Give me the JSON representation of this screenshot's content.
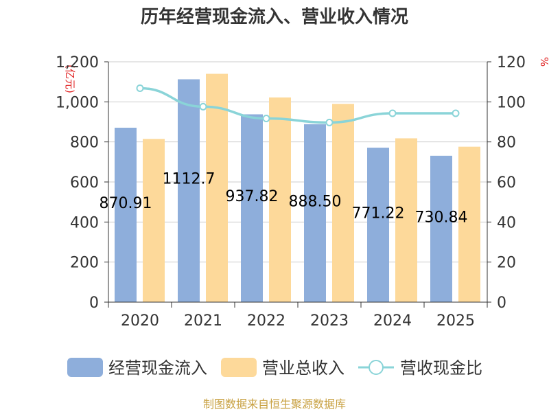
{
  "chart_data": {
    "type": "bar",
    "title": "历年经营现金流入、营业收入情况",
    "categories": [
      "2020",
      "2021",
      "2022",
      "2023",
      "2024",
      "2025"
    ],
    "y_left_unit": "(亿元)",
    "y_right_unit": "%",
    "y_left_ticks": [
      "0",
      "200",
      "400",
      "600",
      "800",
      "1,000",
      "1,200"
    ],
    "y_right_ticks": [
      "0",
      "20",
      "40",
      "60",
      "80",
      "100",
      "120"
    ],
    "ylim_left": [
      0,
      1200
    ],
    "ylim_right": [
      0,
      120
    ],
    "series": [
      {
        "name": "经营现金流入",
        "type": "bar",
        "axis": "left",
        "values": [
          870.91,
          1112.7,
          937.82,
          888.5,
          771.22,
          730.84
        ],
        "labels": [
          "870.91",
          "1112.7",
          "937.82",
          "888.50",
          "771.22",
          "730.84"
        ],
        "color": "#8eaedb"
      },
      {
        "name": "营业总收入",
        "type": "bar",
        "axis": "left",
        "values": [
          815,
          1140,
          1022,
          990,
          818,
          776
        ],
        "color": "#fdd99a"
      },
      {
        "name": "营收现金比",
        "type": "line",
        "axis": "right",
        "values": [
          106.8,
          97.6,
          91.7,
          89.7,
          94.3,
          94.3
        ],
        "color": "#8ad4d8"
      }
    ],
    "grid": true,
    "legend_position": "bottom"
  },
  "source": "制图数据来自恒生聚源数据库"
}
